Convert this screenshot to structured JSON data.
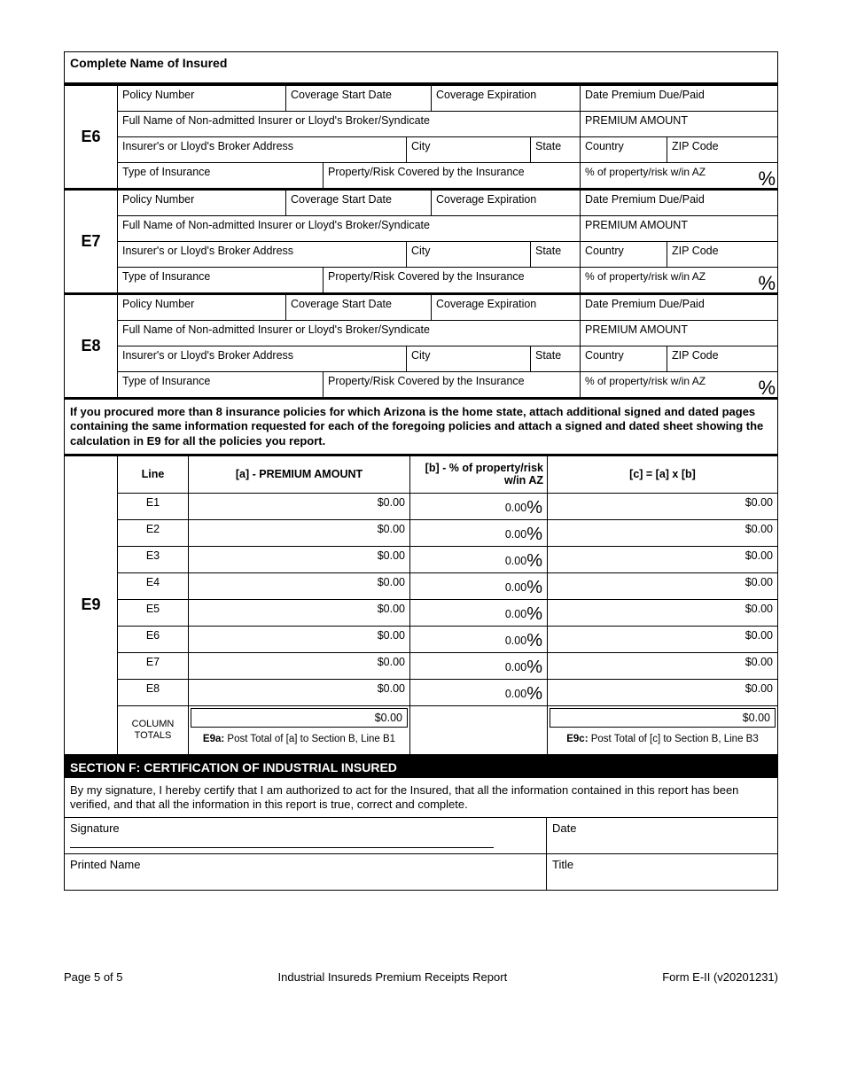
{
  "header": "Complete Name of Insured",
  "policyBlocks": [
    {
      "id": "E6",
      "labels": {
        "policyNumber": "Policy Number",
        "coverageStart": "Coverage Start Date",
        "coverageExp": "Coverage Expiration",
        "datePremium": "Date Premium Due/Paid",
        "fullName": "Full Name of Non-admitted Insurer or Lloyd's Broker/Syndicate",
        "premiumAmt": "PREMIUM AMOUNT",
        "brokerAddr": "Insurer's or Lloyd's Broker Address",
        "city": "City",
        "state": "State",
        "country": "Country",
        "zip": "ZIP Code",
        "typeIns": "Type of Insurance",
        "propRisk": "Property/Risk Covered by the Insurance",
        "pctAZ": "% of property/risk w/in AZ"
      }
    },
    {
      "id": "E7",
      "labels": {
        "policyNumber": "Policy Number",
        "coverageStart": "Coverage Start Date",
        "coverageExp": "Coverage Expiration",
        "datePremium": "Date Premium Due/Paid",
        "fullName": "Full Name of Non-admitted Insurer or Lloyd's Broker/Syndicate",
        "premiumAmt": "PREMIUM AMOUNT",
        "brokerAddr": "Insurer's or Lloyd's Broker Address",
        "city": "City",
        "state": "State",
        "country": "Country",
        "zip": "ZIP Code",
        "typeIns": "Type of Insurance",
        "propRisk": "Property/Risk Covered by the Insurance",
        "pctAZ": "% of property/risk w/in AZ"
      }
    },
    {
      "id": "E8",
      "labels": {
        "policyNumber": "Policy Number",
        "coverageStart": "Coverage Start Date",
        "coverageExp": "Coverage Expiration",
        "datePremium": "Date Premium Due/Paid",
        "fullName": "Full Name of Non-admitted Insurer or Lloyd's Broker/Syndicate",
        "premiumAmt": "PREMIUM AMOUNT",
        "brokerAddr": "Insurer's or Lloyd's Broker Address",
        "city": "City",
        "state": "State",
        "country": "Country",
        "zip": "ZIP Code",
        "typeIns": "Type of Insurance",
        "propRisk": "Property/Risk Covered by the Insurance",
        "pctAZ": "% of property/risk w/in AZ"
      }
    }
  ],
  "note": "If you procured more than 8 insurance policies for which Arizona is the home state, attach additional signed and dated pages containing the same information requested for each of the foregoing policies and attach a signed and dated sheet showing the calculation in E9 for all the policies you report.",
  "e9": {
    "id": "E9",
    "headers": {
      "line": "Line",
      "a": "[a] - PREMIUM AMOUNT",
      "b": "[b] - % of property/risk w/in AZ",
      "c": "[c] = [a] x [b]"
    },
    "rows": [
      {
        "line": "E1",
        "a": "$0.00",
        "b": "0.00",
        "c": "$0.00"
      },
      {
        "line": "E2",
        "a": "$0.00",
        "b": "0.00",
        "c": "$0.00"
      },
      {
        "line": "E3",
        "a": "$0.00",
        "b": "0.00",
        "c": "$0.00"
      },
      {
        "line": "E4",
        "a": "$0.00",
        "b": "0.00",
        "c": "$0.00"
      },
      {
        "line": "E5",
        "a": "$0.00",
        "b": "0.00",
        "c": "$0.00"
      },
      {
        "line": "E6",
        "a": "$0.00",
        "b": "0.00",
        "c": "$0.00"
      },
      {
        "line": "E7",
        "a": "$0.00",
        "b": "0.00",
        "c": "$0.00"
      },
      {
        "line": "E8",
        "a": "$0.00",
        "b": "0.00",
        "c": "$0.00"
      }
    ],
    "totals": {
      "label": "COLUMN TOTALS",
      "aVal": "$0.00",
      "aTxt1": "E9a:",
      "aTxt2": " Post Total of [a] to Section B, Line B1",
      "cVal": "$0.00",
      "cTxt1": "E9c:",
      "cTxt2": " Post Total of [c] to Section B, Line B3"
    }
  },
  "sectionF": {
    "head": "SECTION F: CERTIFICATION OF INDUSTRIAL INSURED",
    "text": "By my signature, I hereby certify that I am authorized to act for the Insured, that all the information contained in this report has been verified, and that all the information in this report is true, correct and complete.",
    "signature": "Signature",
    "date": "Date",
    "printedName": "Printed Name",
    "title": "Title"
  },
  "footer": {
    "left": "Page 5 of 5",
    "center": "Industrial Insureds Premium Receipts Report",
    "right": "Form E-II (v20201231)"
  }
}
